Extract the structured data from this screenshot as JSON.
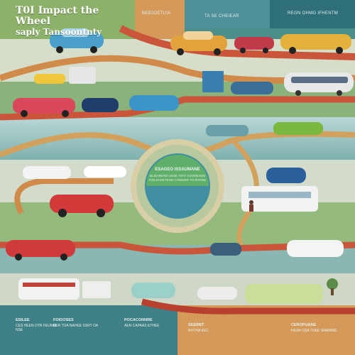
{
  "title": {
    "line1": "T0I Impact the Wheel",
    "line2": "saply Tansoontnty"
  },
  "headers": {
    "top_mid": "BEB2OETUIA",
    "top_right_a": "TA SE CHEIEAR",
    "top_right_b": "REGN OHMG IFHENTM"
  },
  "hub": {
    "line1": "ESAGEO ISSAUMANE",
    "line2": "BLIEARENS USSE TSAT AOOMESEN FOILEUSETENS CAMIEER TO EITANE"
  },
  "footer": [
    {
      "head": "ESILEE",
      "text": "CES HEEN OTR FEUNEE NSE"
    },
    {
      "head": "FOIOOSES",
      "text": "BER TOA NAHEE SSRT OA"
    },
    {
      "head": "POCACONNRE",
      "text": "AEN CAPAAS ETHEE"
    },
    {
      "head": "SEERBT",
      "text": "ROTHA EEC"
    },
    {
      "head": "CEROPUANE",
      "text": "HESR OSA TOEE SNAIMNE"
    }
  ],
  "colors": {
    "teal": "#4c8f8a",
    "green": "#8cb26a",
    "orange": "#d59a5a",
    "road": "#c9553a",
    "hub_ring": "#d8cfa6",
    "hub_fill": "#3f8fa0"
  },
  "icons": [
    "car-icon",
    "bus-icon",
    "truck-icon",
    "person-icon",
    "tree-icon",
    "building-icon"
  ]
}
